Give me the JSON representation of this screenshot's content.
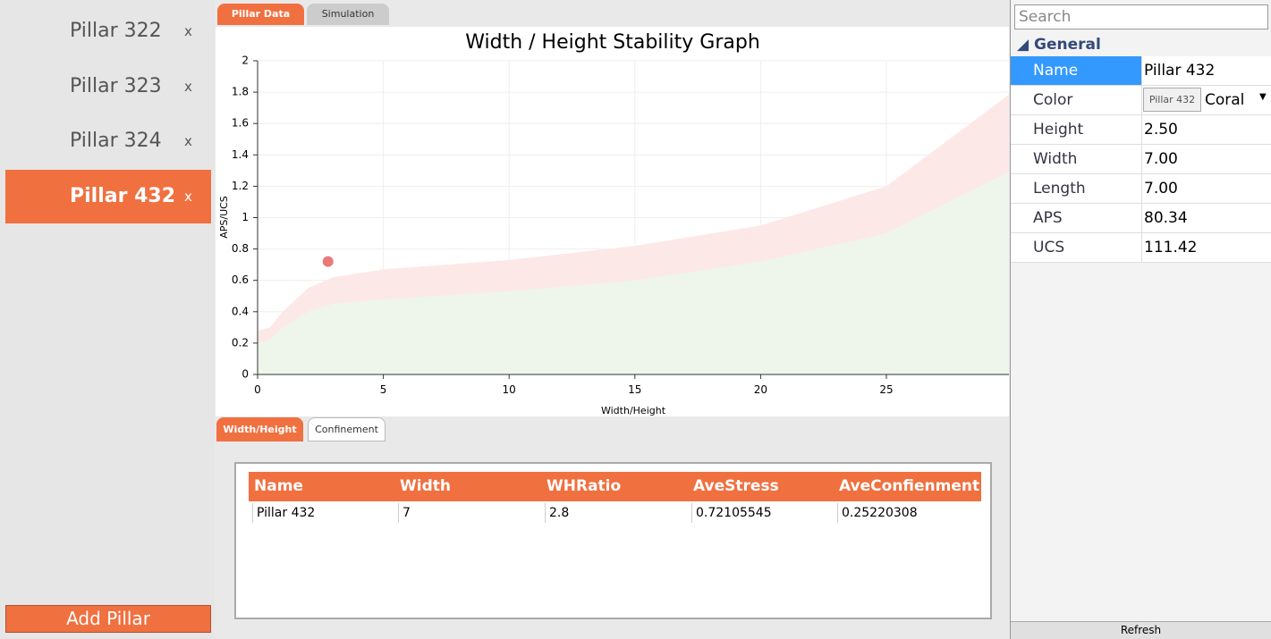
{
  "sidebar": {
    "items": [
      "Pillar 322",
      "Pillar 323",
      "Pillar 324",
      "Pillar 432"
    ],
    "close_label": "x",
    "add_button": "Add Pillar"
  },
  "tabs": {
    "top": [
      "Pillar Data",
      "Simulation"
    ],
    "bottom": [
      "Width/Height",
      "Confinement"
    ]
  },
  "graph": {
    "type": "area",
    "title": "Width / Height Stability Graph",
    "x_label": "Width/Height",
    "y_label": "APS/UCS",
    "xlim": [
      0,
      30
    ],
    "ylim": [
      0,
      2
    ],
    "xticks": [
      0,
      5,
      10,
      15,
      20,
      25
    ],
    "yticks": [
      0,
      0.2,
      0.4,
      0.6,
      0.8,
      1,
      1.2,
      1.4,
      1.6,
      1.8,
      2
    ],
    "grid": true,
    "x": [
      0,
      0.5,
      1,
      2,
      3,
      5,
      10,
      15,
      20,
      25,
      30
    ],
    "bands": [
      {
        "color": "#fde8e8",
        "values": [
          0.28,
          0.3,
          0.4,
          0.55,
          0.62,
          0.67,
          0.73,
          0.82,
          0.95,
          1.2,
          1.8
        ]
      },
      {
        "color": "#eef5ea",
        "values": [
          0.2,
          0.22,
          0.3,
          0.4,
          0.45,
          0.48,
          0.53,
          0.6,
          0.72,
          0.9,
          1.3
        ]
      }
    ],
    "point": {
      "x": 2.8,
      "y": 0.72,
      "color": "#e87a7a"
    }
  },
  "table": {
    "columns": [
      "Name",
      "Width",
      "WHRatio",
      "AveStress",
      "AveConfienment"
    ],
    "rows": [
      [
        "Pillar 432",
        "7",
        "2.8",
        "0.72105545",
        "0.25220308"
      ]
    ]
  },
  "properties": {
    "search_placeholder": "Search",
    "group": "General",
    "tooltip": "Pillar 432",
    "rows": [
      [
        "Name",
        "Pillar 432"
      ],
      [
        "Color",
        "Coral"
      ],
      [
        "Height",
        "2.50"
      ],
      [
        "Width",
        "7.00"
      ],
      [
        "Length",
        "7.00"
      ],
      [
        "APS",
        "80.34"
      ],
      [
        "UCS",
        "111.42"
      ]
    ],
    "refresh": "Refresh"
  }
}
